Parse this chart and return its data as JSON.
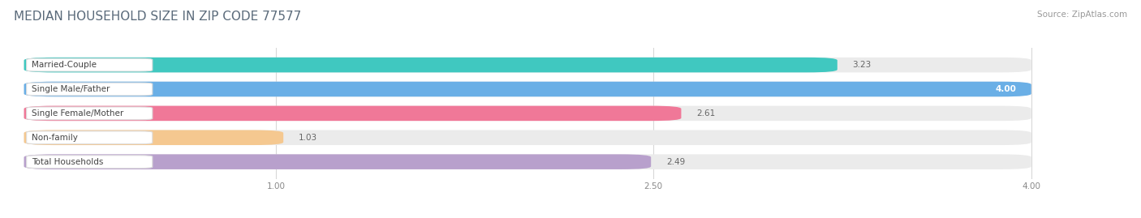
{
  "title": "MEDIAN HOUSEHOLD SIZE IN ZIP CODE 77577",
  "source": "Source: ZipAtlas.com",
  "categories": [
    "Married-Couple",
    "Single Male/Father",
    "Single Female/Mother",
    "Non-family",
    "Total Households"
  ],
  "values": [
    3.23,
    4.0,
    2.61,
    1.03,
    2.49
  ],
  "bar_colors": [
    "#40c8c0",
    "#6aafe6",
    "#f07898",
    "#f5c890",
    "#b8a0cc"
  ],
  "background_color": "#ffffff",
  "bar_bg_color": "#ebebeb",
  "xmin": 0.0,
  "xmax": 4.0,
  "xlim_left": -0.05,
  "xlim_right": 4.3,
  "xticks": [
    1.0,
    2.5,
    4.0
  ],
  "label_fontsize": 7.5,
  "value_fontsize": 7.5,
  "title_fontsize": 11,
  "source_fontsize": 7.5
}
